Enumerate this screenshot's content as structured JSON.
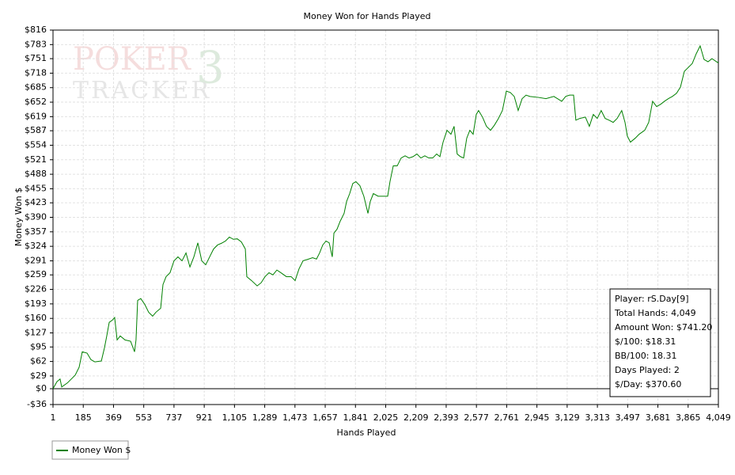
{
  "chart_data": {
    "type": "line",
    "title": "Money Won for Hands Played",
    "xlabel": "Hands Played",
    "ylabel": "Money Won $",
    "watermark": [
      "POKER",
      "TRACKER",
      "3"
    ],
    "info_box": [
      "Player: rS.Day[9]",
      "Total Hands: 4,049",
      "Amount Won: $741.20",
      "$/100: $18.31",
      "BB/100: 18.31",
      "Days Played: 2",
      "$/Day: $370.60"
    ],
    "grid": true,
    "legend": "bottom-left",
    "xlim": [
      1,
      4049
    ],
    "ylim": [
      -36,
      816
    ],
    "xticks": [
      1,
      185,
      369,
      553,
      737,
      921,
      {
        "value": 1105,
        "label": "1,105"
      },
      {
        "value": 1289,
        "label": "1,289"
      },
      {
        "value": 1473,
        "label": "1,473"
      },
      {
        "value": 1657,
        "label": "1,657"
      },
      {
        "value": 1841,
        "label": "1,841"
      },
      {
        "value": 2025,
        "label": "2,025"
      },
      {
        "value": 2209,
        "label": "2,209"
      },
      {
        "value": 2393,
        "label": "2,393"
      },
      {
        "value": 2577,
        "label": "2,577"
      },
      {
        "value": 2761,
        "label": "2,761"
      },
      {
        "value": 2945,
        "label": "2,945"
      },
      {
        "value": 3129,
        "label": "3,129"
      },
      {
        "value": 3313,
        "label": "3,313"
      },
      {
        "value": 3497,
        "label": "3,497"
      },
      {
        "value": 3681,
        "label": "3,681"
      },
      {
        "value": 3865,
        "label": "3,865"
      },
      {
        "value": 4049,
        "label": "4,049"
      }
    ],
    "yticks": [
      {
        "value": -36,
        "label": "-$36"
      },
      {
        "value": 0,
        "label": "$0"
      },
      {
        "value": 29,
        "label": "$29"
      },
      {
        "value": 62,
        "label": "$62"
      },
      {
        "value": 95,
        "label": "$95"
      },
      {
        "value": 127,
        "label": "$127"
      },
      {
        "value": 160,
        "label": "$160"
      },
      {
        "value": 193,
        "label": "$193"
      },
      {
        "value": 226,
        "label": "$226"
      },
      {
        "value": 259,
        "label": "$259"
      },
      {
        "value": 291,
        "label": "$291"
      },
      {
        "value": 324,
        "label": "$324"
      },
      {
        "value": 357,
        "label": "$357"
      },
      {
        "value": 390,
        "label": "$390"
      },
      {
        "value": 423,
        "label": "$423"
      },
      {
        "value": 455,
        "label": "$455"
      },
      {
        "value": 488,
        "label": "$488"
      },
      {
        "value": 521,
        "label": "$521"
      },
      {
        "value": 554,
        "label": "$554"
      },
      {
        "value": 587,
        "label": "$587"
      },
      {
        "value": 619,
        "label": "$619"
      },
      {
        "value": 652,
        "label": "$652"
      },
      {
        "value": 685,
        "label": "$685"
      },
      {
        "value": 718,
        "label": "$718"
      },
      {
        "value": 751,
        "label": "$751"
      },
      {
        "value": 783,
        "label": "$783"
      },
      {
        "value": 816,
        "label": "$816"
      }
    ],
    "x": [
      1,
      25,
      44,
      54,
      88,
      112,
      136,
      160,
      179,
      208,
      232,
      256,
      295,
      314,
      328,
      343,
      362,
      376,
      391,
      410,
      439,
      473,
      497,
      506,
      516,
      535,
      559,
      583,
      607,
      627,
      656,
      670,
      689,
      713,
      737,
      761,
      786,
      810,
      834,
      858,
      882,
      906,
      930,
      954,
      978,
      1002,
      1026,
      1050,
      1074,
      1098,
      1122,
      1147,
      1171,
      1180,
      1209,
      1243,
      1267,
      1291,
      1315,
      1339,
      1363,
      1387,
      1421,
      1450,
      1474,
      1498,
      1522,
      1556,
      1580,
      1604,
      1623,
      1642,
      1662,
      1681,
      1700,
      1710,
      1729,
      1748,
      1772,
      1787,
      1806,
      1825,
      1844,
      1868,
      1892,
      1917,
      1931,
      1950,
      1979,
      2013,
      2037,
      2051,
      2071,
      2095,
      2119,
      2143,
      2167,
      2191,
      2215,
      2239,
      2263,
      2287,
      2311,
      2335,
      2355,
      2374,
      2398,
      2422,
      2441,
      2460,
      2480,
      2499,
      2518,
      2537,
      2557,
      2576,
      2590,
      2614,
      2638,
      2663,
      2687,
      2711,
      2735,
      2759,
      2783,
      2807,
      2831,
      2855,
      2879,
      2903,
      2951,
      3000,
      3048,
      3096,
      3120,
      3144,
      3168,
      3182,
      3206,
      3240,
      3264,
      3288,
      3312,
      3336,
      3360,
      3384,
      3409,
      3433,
      3461,
      3481,
      3495,
      3514,
      3543,
      3567,
      3601,
      3625,
      3649,
      3673,
      3697,
      3721,
      3745,
      3769,
      3794,
      3818,
      3842,
      3866,
      3890,
      3914,
      3938,
      3962,
      3986,
      4010,
      4049
    ],
    "series": [
      {
        "name": "Money Won $",
        "color": "#008000",
        "values": [
          0,
          16,
          22,
          4,
          13,
          22,
          31,
          49,
          84,
          81,
          66,
          61,
          63,
          93,
          120,
          151,
          156,
          162,
          111,
          120,
          111,
          108,
          84,
          111,
          201,
          205,
          192,
          174,
          165,
          174,
          183,
          237,
          255,
          264,
          291,
          300,
          291,
          309,
          277,
          300,
          332,
          291,
          282,
          300,
          318,
          327,
          331,
          336,
          345,
          340,
          341,
          334,
          318,
          255,
          246,
          234,
          241,
          255,
          264,
          259,
          270,
          264,
          255,
          255,
          246,
          273,
          291,
          295,
          298,
          295,
          309,
          327,
          336,
          332,
          300,
          354,
          363,
          381,
          399,
          426,
          444,
          467,
          471,
          462,
          438,
          399,
          426,
          444,
          438,
          438,
          438,
          471,
          507,
          507,
          525,
          530,
          525,
          528,
          534,
          525,
          530,
          525,
          525,
          534,
          528,
          561,
          588,
          579,
          597,
          534,
          528,
          525,
          570,
          588,
          579,
          624,
          633,
          618,
          597,
          588,
          600,
          615,
          633,
          677,
          674,
          665,
          633,
          660,
          668,
          665,
          663,
          660,
          665,
          654,
          665,
          668,
          668,
          611,
          615,
          618,
          597,
          624,
          615,
          633,
          615,
          611,
          606,
          615,
          633,
          606,
          575,
          561,
          570,
          579,
          588,
          606,
          654,
          642,
          647,
          654,
          660,
          665,
          672,
          686,
          722,
          731,
          740,
          762,
          780,
          749,
          744,
          751,
          741.2
        ]
      }
    ]
  }
}
